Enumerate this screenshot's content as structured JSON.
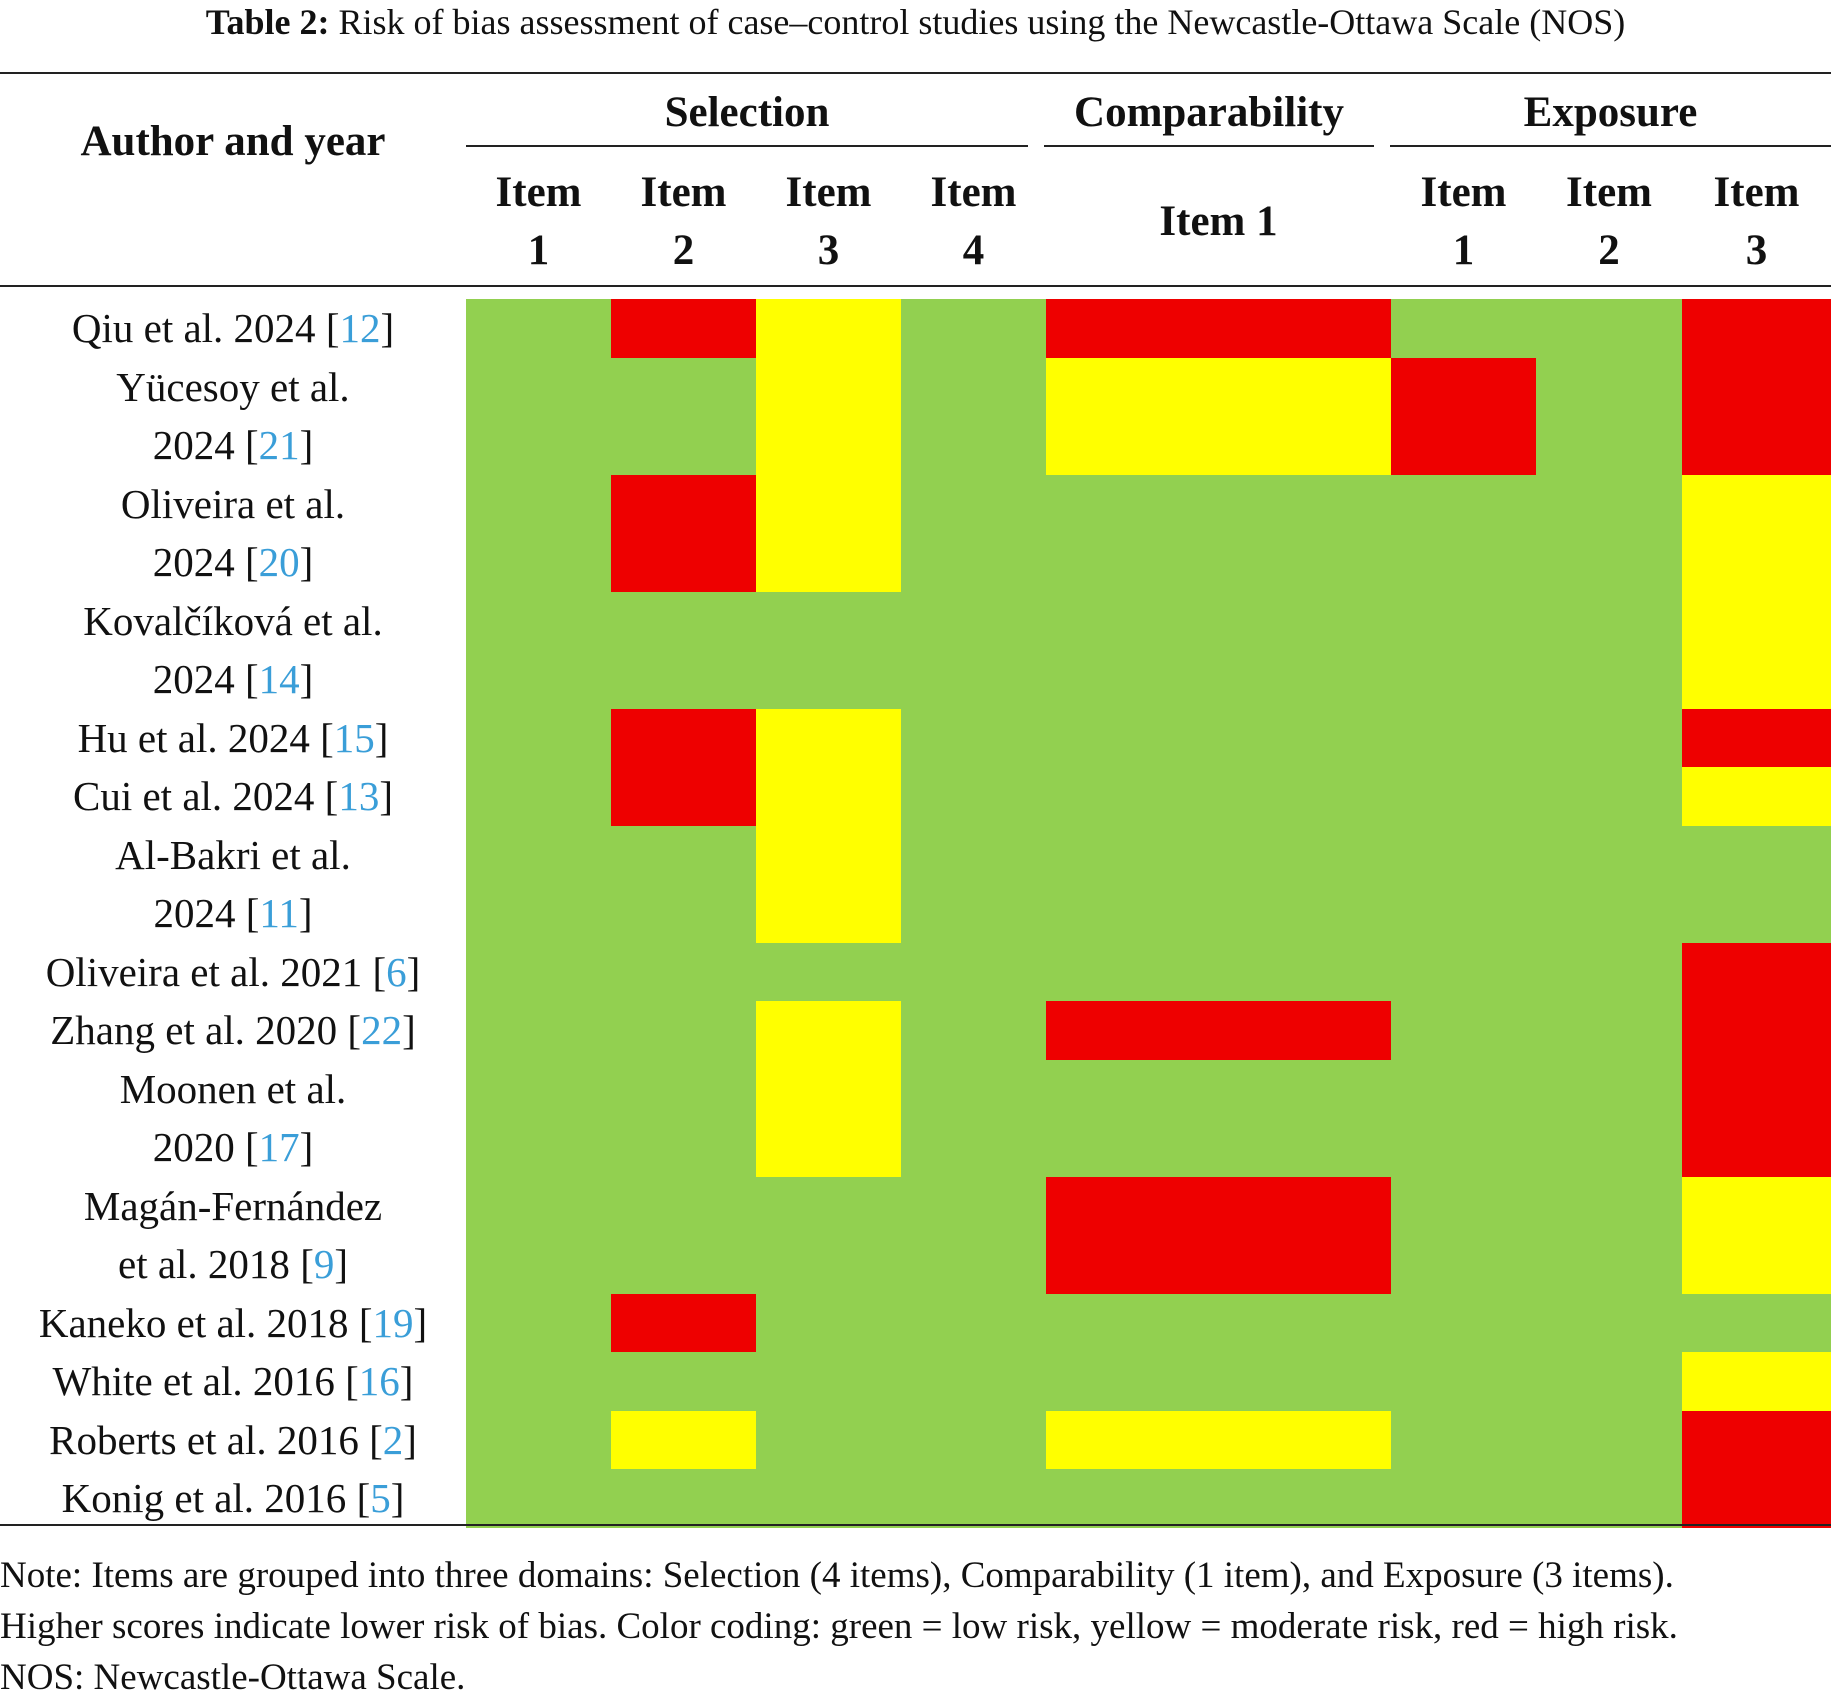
{
  "caption": {
    "label": "Table 2:",
    "text": "Risk of bias assessment of case–control studies using the Newcastle-Ottawa Scale (NOS)"
  },
  "header": {
    "author": "Author and year",
    "domains": [
      "Selection",
      "Comparability",
      "Exposure"
    ],
    "item_word": "Item",
    "item_numbers": [
      "1",
      "2",
      "3",
      "4",
      "1",
      "1",
      "2",
      "3"
    ]
  },
  "colors": {
    "g": "#92d050",
    "y": "#ffff00",
    "r": "#ee0000"
  },
  "legend_meaning": {
    "g": "low risk",
    "y": "moderate risk",
    "r": "high risk"
  },
  "studies": [
    {
      "lines": [
        "Qiu et al. 2024"
      ],
      "ref": "12",
      "ratings": [
        "g",
        "r",
        "y",
        "g",
        "r",
        "g",
        "g",
        "r"
      ]
    },
    {
      "lines": [
        "Yücesoy et al.",
        "2024"
      ],
      "ref": "21",
      "ratings": [
        "g",
        "g",
        "y",
        "g",
        "y",
        "r",
        "g",
        "r"
      ]
    },
    {
      "lines": [
        "Oliveira et al.",
        "2024"
      ],
      "ref": "20",
      "ratings": [
        "g",
        "r",
        "y",
        "g",
        "g",
        "g",
        "g",
        "y"
      ]
    },
    {
      "lines": [
        "Kovalčíková et al.",
        "2024"
      ],
      "ref": "14",
      "ratings": [
        "g",
        "g",
        "g",
        "g",
        "g",
        "g",
        "g",
        "y"
      ]
    },
    {
      "lines": [
        "Hu et al. 2024"
      ],
      "ref": "15",
      "ratings": [
        "g",
        "r",
        "y",
        "g",
        "g",
        "g",
        "g",
        "r"
      ]
    },
    {
      "lines": [
        "Cui et al. 2024"
      ],
      "ref": "13",
      "ratings": [
        "g",
        "r",
        "y",
        "g",
        "g",
        "g",
        "g",
        "y"
      ]
    },
    {
      "lines": [
        "Al-Bakri et al.",
        "2024"
      ],
      "ref": "11",
      "ratings": [
        "g",
        "g",
        "y",
        "g",
        "g",
        "g",
        "g",
        "g"
      ]
    },
    {
      "lines": [
        "Oliveira et al. 2021"
      ],
      "ref": "6",
      "ratings": [
        "g",
        "g",
        "g",
        "g",
        "g",
        "g",
        "g",
        "r"
      ]
    },
    {
      "lines": [
        "Zhang et al. 2020"
      ],
      "ref": "22",
      "ratings": [
        "g",
        "g",
        "y",
        "g",
        "r",
        "g",
        "g",
        "r"
      ]
    },
    {
      "lines": [
        "Moonen et al.",
        "2020"
      ],
      "ref": "17",
      "ratings": [
        "g",
        "g",
        "y",
        "g",
        "g",
        "g",
        "g",
        "r"
      ]
    },
    {
      "lines": [
        "Magán-Fernández",
        "et al. 2018"
      ],
      "ref": "9",
      "ratings": [
        "g",
        "g",
        "g",
        "g",
        "r",
        "g",
        "g",
        "y"
      ]
    },
    {
      "lines": [
        "Kaneko et al. 2018"
      ],
      "ref": "19",
      "ratings": [
        "g",
        "r",
        "g",
        "g",
        "g",
        "g",
        "g",
        "g"
      ]
    },
    {
      "lines": [
        "White et al. 2016"
      ],
      "ref": "16",
      "ratings": [
        "g",
        "g",
        "g",
        "g",
        "g",
        "g",
        "g",
        "y"
      ]
    },
    {
      "lines": [
        "Roberts et al. 2016"
      ],
      "ref": "2",
      "ratings": [
        "g",
        "y",
        "g",
        "g",
        "y",
        "g",
        "g",
        "r"
      ]
    },
    {
      "lines": [
        "Konig et al. 2016"
      ],
      "ref": "5",
      "ratings": [
        "g",
        "g",
        "g",
        "g",
        "g",
        "g",
        "g",
        "r"
      ]
    }
  ],
  "note": [
    "Note: Items are grouped into three domains: Selection (4 items), Comparability (1 item), and Exposure (3 items).",
    "Higher scores indicate lower risk of bias. Color coding: green = low risk, yellow = moderate risk, red = high risk.",
    "NOS: Newcastle-Ottawa Scale."
  ]
}
